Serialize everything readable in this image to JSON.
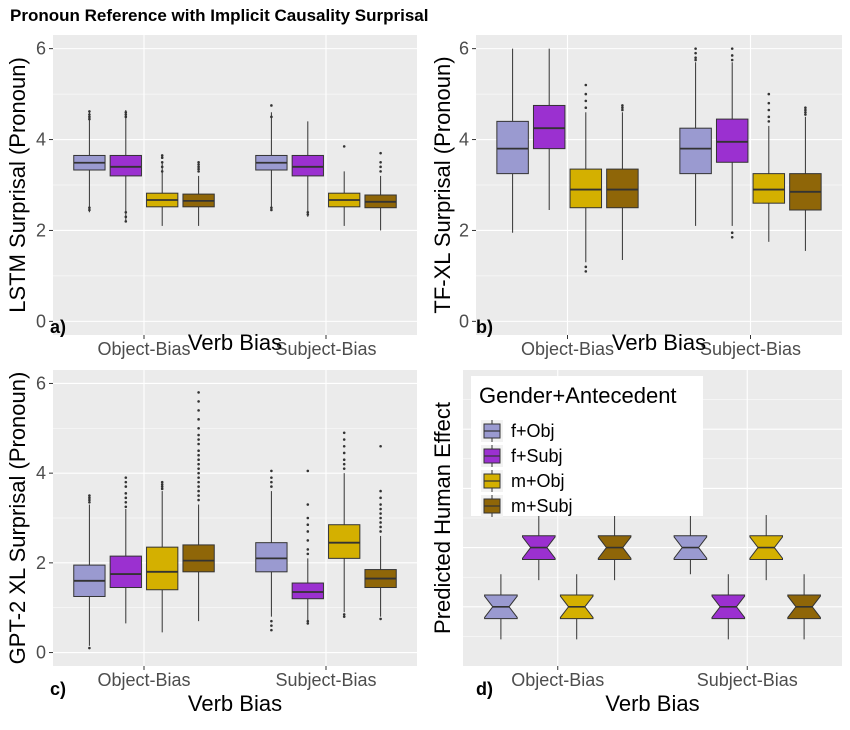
{
  "figure": {
    "title": "Pronoun Reference with Implicit Causality Surprisal",
    "colors": {
      "panel_bg": "#ebebeb",
      "grid": "#ffffff",
      "box_line": "#333333"
    }
  },
  "chart_data": [
    {
      "tag": "a)",
      "type": "box",
      "ylabel": "LSTM Surprisal (Pronoun)",
      "xlabel": "Verb Bias",
      "categories": [
        "Object-Bias",
        "Subject-Bias"
      ],
      "ylim": [
        -0.3,
        6.3
      ],
      "yticks": [
        0,
        2,
        4,
        6
      ],
      "series": [
        {
          "name": "f+Obj",
          "color": "#9a9ad0",
          "stats": [
            {
              "whislo": 2.4,
              "q1": 3.33,
              "med": 3.49,
              "q3": 3.65,
              "whishi": 4.6,
              "outliers": [
                4.45,
                4.5,
                4.55,
                4.62,
                2.5,
                2.45
              ]
            },
            {
              "whislo": 2.45,
              "q1": 3.33,
              "med": 3.49,
              "q3": 3.65,
              "whishi": 4.6,
              "outliers": [
                4.5,
                4.75,
                2.5,
                2.45
              ]
            }
          ]
        },
        {
          "name": "f+Subj",
          "color": "#9b30d0",
          "stats": [
            {
              "whislo": 2.2,
              "q1": 3.2,
              "med": 3.4,
              "q3": 3.65,
              "whishi": 4.65,
              "outliers": [
                4.5,
                4.55,
                4.6,
                2.4,
                2.3,
                2.2
              ]
            },
            {
              "whislo": 2.3,
              "q1": 3.2,
              "med": 3.4,
              "q3": 3.65,
              "whishi": 4.4,
              "outliers": [
                2.4,
                2.35
              ]
            }
          ]
        },
        {
          "name": "m+Obj",
          "color": "#d4b000",
          "stats": [
            {
              "whislo": 2.1,
              "q1": 2.52,
              "med": 2.67,
              "q3": 2.82,
              "whishi": 3.5,
              "outliers": [
                3.3,
                3.4,
                3.5,
                3.6,
                3.65
              ]
            },
            {
              "whislo": 2.1,
              "q1": 2.52,
              "med": 2.67,
              "q3": 2.82,
              "whishi": 3.3,
              "outliers": [
                3.85
              ]
            }
          ]
        },
        {
          "name": "m+Subj",
          "color": "#8f6608",
          "stats": [
            {
              "whislo": 2.1,
              "q1": 2.52,
              "med": 2.65,
              "q3": 2.8,
              "whishi": 3.2,
              "outliers": [
                3.3,
                3.35,
                3.4,
                3.45,
                3.5
              ]
            },
            {
              "whislo": 2.0,
              "q1": 2.5,
              "med": 2.63,
              "q3": 2.78,
              "whishi": 3.2,
              "outliers": [
                3.3,
                3.4,
                3.5,
                3.7
              ]
            }
          ]
        }
      ]
    },
    {
      "tag": "b)",
      "type": "box",
      "ylabel": "TF-XL Surprisal (Pronoun)",
      "xlabel": "Verb Bias",
      "categories": [
        "Object-Bias",
        "Subject-Bias"
      ],
      "ylim": [
        -0.3,
        6.3
      ],
      "yticks": [
        0,
        2,
        4,
        6
      ],
      "series": [
        {
          "name": "f+Obj",
          "color": "#9a9ad0",
          "stats": [
            {
              "whislo": 1.95,
              "q1": 3.25,
              "med": 3.8,
              "q3": 4.4,
              "whishi": 6.0,
              "outliers": []
            },
            {
              "whislo": 2.1,
              "q1": 3.25,
              "med": 3.8,
              "q3": 4.25,
              "whishi": 5.7,
              "outliers": [
                5.75,
                5.8,
                5.9,
                6.0
              ]
            }
          ]
        },
        {
          "name": "f+Subj",
          "color": "#9b30d0",
          "stats": [
            {
              "whislo": 2.45,
              "q1": 3.8,
              "med": 4.25,
              "q3": 4.75,
              "whishi": 6.0,
              "outliers": []
            },
            {
              "whislo": 2.1,
              "q1": 3.5,
              "med": 3.95,
              "q3": 4.45,
              "whishi": 5.7,
              "outliers": [
                5.75,
                5.85,
                6.0,
                1.95,
                1.85
              ]
            }
          ]
        },
        {
          "name": "m+Obj",
          "color": "#d4b000",
          "stats": [
            {
              "whislo": 1.3,
              "q1": 2.5,
              "med": 2.9,
              "q3": 3.35,
              "whishi": 4.6,
              "outliers": [
                4.7,
                4.85,
                5.0,
                5.2,
                1.2,
                1.1
              ]
            },
            {
              "whislo": 1.75,
              "q1": 2.6,
              "med": 2.9,
              "q3": 3.25,
              "whishi": 4.3,
              "outliers": [
                4.4,
                4.5,
                4.65,
                4.8,
                5.0
              ]
            }
          ]
        },
        {
          "name": "m+Subj",
          "color": "#8f6608",
          "stats": [
            {
              "whislo": 1.35,
              "q1": 2.5,
              "med": 2.9,
              "q3": 3.35,
              "whishi": 4.6,
              "outliers": [
                4.65,
                4.7,
                4.75
              ]
            },
            {
              "whislo": 1.55,
              "q1": 2.45,
              "med": 2.85,
              "q3": 3.25,
              "whishi": 4.5,
              "outliers": [
                4.55,
                4.6,
                4.65,
                4.7
              ]
            }
          ]
        }
      ]
    },
    {
      "tag": "c)",
      "type": "box",
      "ylabel": "GPT-2 XL Surprisal (Pronoun)",
      "xlabel": "Verb Bias",
      "categories": [
        "Object-Bias",
        "Subject-Bias"
      ],
      "ylim": [
        -0.3,
        6.3
      ],
      "yticks": [
        0,
        2,
        4,
        6
      ],
      "series": [
        {
          "name": "f+Obj",
          "color": "#9a9ad0",
          "stats": [
            {
              "whislo": 0.15,
              "q1": 1.25,
              "med": 1.6,
              "q3": 1.95,
              "whishi": 3.3,
              "outliers": [
                3.35,
                3.4,
                3.45,
                3.5,
                0.1
              ]
            },
            {
              "whislo": 0.8,
              "q1": 1.8,
              "med": 2.1,
              "q3": 2.45,
              "whishi": 3.6,
              "outliers": [
                3.7,
                3.8,
                3.9,
                4.05,
                0.7,
                0.6,
                0.5
              ]
            }
          ]
        },
        {
          "name": "f+Subj",
          "color": "#9b30d0",
          "stats": [
            {
              "whislo": 0.65,
              "q1": 1.45,
              "med": 1.75,
              "q3": 2.15,
              "whishi": 3.2,
              "outliers": [
                3.25,
                3.35,
                3.45,
                3.55,
                3.7,
                3.8,
                3.9
              ]
            },
            {
              "whislo": 0.7,
              "q1": 1.2,
              "med": 1.35,
              "q3": 1.55,
              "whishi": 2.1,
              "outliers": [
                2.2,
                2.3,
                2.5,
                2.7,
                2.85,
                3.0,
                3.3,
                4.05,
                0.7,
                0.65
              ]
            }
          ]
        },
        {
          "name": "m+Obj",
          "color": "#d4b000",
          "stats": [
            {
              "whislo": 0.45,
              "q1": 1.4,
              "med": 1.8,
              "q3": 2.35,
              "whishi": 3.6,
              "outliers": [
                3.65,
                3.7,
                3.75,
                3.8
              ]
            },
            {
              "whislo": 0.9,
              "q1": 2.1,
              "med": 2.45,
              "q3": 2.85,
              "whishi": 4.0,
              "outliers": [
                4.1,
                4.2,
                4.3,
                4.45,
                4.6,
                4.75,
                4.9,
                0.85,
                0.8
              ]
            }
          ]
        },
        {
          "name": "m+Subj",
          "color": "#8f6608",
          "stats": [
            {
              "whislo": 0.7,
              "q1": 1.8,
              "med": 2.05,
              "q3": 2.4,
              "whishi": 3.3,
              "outliers": [
                3.4,
                3.5,
                3.6,
                3.7,
                3.8,
                3.9,
                4.0,
                4.1,
                4.2,
                4.3,
                4.4,
                4.5,
                4.65,
                4.75,
                4.85,
                5.0,
                5.2,
                5.4,
                5.6,
                5.8
              ]
            },
            {
              "whislo": 0.8,
              "q1": 1.45,
              "med": 1.65,
              "q3": 1.85,
              "whishi": 2.6,
              "outliers": [
                2.7,
                2.8,
                2.9,
                3.0,
                3.1,
                3.2,
                3.3,
                3.45,
                3.6,
                4.6,
                0.75
              ]
            }
          ]
        }
      ]
    },
    {
      "tag": "d)",
      "type": "box",
      "notched": true,
      "ylabel": "Predicted Human Effect",
      "xlabel": "Verb Bias",
      "categories": [
        "Object-Bias",
        "Subject-Bias"
      ],
      "ylim": [
        0,
        10
      ],
      "yticks": [],
      "legend": {
        "title": "Gender+Antecedent",
        "position": "top-left"
      },
      "series": [
        {
          "name": "f+Obj",
          "color": "#9a9ad0",
          "stats": [
            {
              "whislo": 0.9,
              "q1": 1.6,
              "med": 2.0,
              "q3": 2.4,
              "whishi": 3.1,
              "outliers": []
            },
            {
              "whislo": 3.1,
              "q1": 3.6,
              "med": 4.0,
              "q3": 4.4,
              "whishi": 5.1,
              "outliers": []
            }
          ]
        },
        {
          "name": "f+Subj",
          "color": "#9b30d0",
          "stats": [
            {
              "whislo": 2.9,
              "q1": 3.6,
              "med": 4.0,
              "q3": 4.4,
              "whishi": 5.1,
              "outliers": []
            },
            {
              "whislo": 0.9,
              "q1": 1.6,
              "med": 2.0,
              "q3": 2.4,
              "whishi": 3.1,
              "outliers": []
            }
          ]
        },
        {
          "name": "m+Obj",
          "color": "#d4b000",
          "stats": [
            {
              "whislo": 0.9,
              "q1": 1.6,
              "med": 2.0,
              "q3": 2.4,
              "whishi": 3.1,
              "outliers": []
            },
            {
              "whislo": 2.9,
              "q1": 3.6,
              "med": 4.0,
              "q3": 4.4,
              "whishi": 5.1,
              "outliers": []
            }
          ]
        },
        {
          "name": "m+Subj",
          "color": "#8f6608",
          "stats": [
            {
              "whislo": 2.9,
              "q1": 3.6,
              "med": 4.0,
              "q3": 4.4,
              "whishi": 5.1,
              "outliers": []
            },
            {
              "whislo": 0.9,
              "q1": 1.6,
              "med": 2.0,
              "q3": 2.4,
              "whishi": 3.1,
              "outliers": []
            }
          ]
        }
      ]
    }
  ]
}
